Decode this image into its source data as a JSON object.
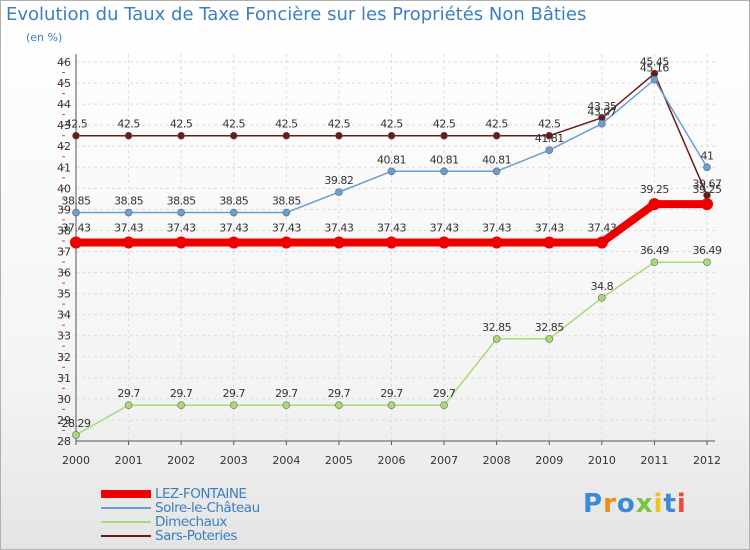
{
  "chart_data": {
    "type": "line",
    "title": "Evolution du Taux de Taxe Foncière sur les Propriétés Non Bâties",
    "ylabel": "(en %)",
    "xlabel": "",
    "ylim": [
      28,
      46
    ],
    "yticks": [
      28,
      29,
      30,
      31,
      32,
      33,
      34,
      35,
      36,
      37,
      38,
      39,
      40,
      41,
      42,
      43,
      44,
      45,
      46
    ],
    "categories": [
      "2000",
      "2001",
      "2002",
      "2003",
      "2004",
      "2005",
      "2006",
      "2007",
      "2008",
      "2009",
      "2010",
      "2011",
      "2012"
    ],
    "series": [
      {
        "name": "Sars-Poteries",
        "color": "#6b1a1a",
        "values": [
          42.5,
          42.5,
          42.5,
          42.5,
          42.5,
          42.5,
          42.5,
          42.5,
          42.5,
          42.5,
          43.35,
          45.45,
          39.67
        ],
        "labels": [
          "42.5",
          "42.5",
          "42.5",
          "42.5",
          "42.5",
          "42.5",
          "42.5",
          "42.5",
          "42.5",
          "42.5",
          "43.35",
          "45.45",
          "39.67"
        ]
      },
      {
        "name": "Solre-le-Château",
        "color": "#6a9fd4",
        "values": [
          38.85,
          38.85,
          38.85,
          38.85,
          38.85,
          39.82,
          40.81,
          40.81,
          40.81,
          41.81,
          43.07,
          45.16,
          41
        ],
        "labels": [
          "38.85",
          "38.85",
          "38.85",
          "38.85",
          "38.85",
          "39.82",
          "40.81",
          "40.81",
          "40.81",
          "41.81",
          "43.07",
          "45.16",
          "41"
        ]
      },
      {
        "name": "Dimechaux",
        "color": "#a6dc73",
        "values": [
          28.29,
          29.7,
          29.7,
          29.7,
          29.7,
          29.7,
          29.7,
          29.7,
          32.85,
          32.85,
          34.8,
          36.49,
          36.49
        ],
        "labels": [
          "28.29",
          "29.7",
          "29.7",
          "29.7",
          "29.7",
          "29.7",
          "29.7",
          "29.7",
          "32.85",
          "32.85",
          "34.8",
          "36.49",
          "36.49"
        ]
      },
      {
        "name": "LEZ-FONTAINE",
        "color": "#ee0000",
        "values": [
          37.43,
          37.43,
          37.43,
          37.43,
          37.43,
          37.43,
          37.43,
          37.43,
          37.43,
          37.43,
          37.43,
          39.25,
          39.25
        ],
        "labels": [
          "37.43",
          "37.43",
          "37.43",
          "37.43",
          "37.43",
          "37.43",
          "37.43",
          "37.43",
          "37.43",
          "37.43",
          "37.43",
          "39.25",
          "39.25"
        ]
      }
    ],
    "legend": [
      "LEZ-FONTAINE",
      "Solre-le-Château",
      "Dimechaux",
      "Sars-Poteries"
    ],
    "legend_position": "bottom-left"
  },
  "branding": {
    "logo_text": "Proxiti",
    "logo_colors": [
      "#3a8ad6",
      "#f08a1c",
      "#3a8ad6",
      "#7cc242",
      "#f0c419",
      "#3a8ad6",
      "#e84c3d"
    ]
  }
}
